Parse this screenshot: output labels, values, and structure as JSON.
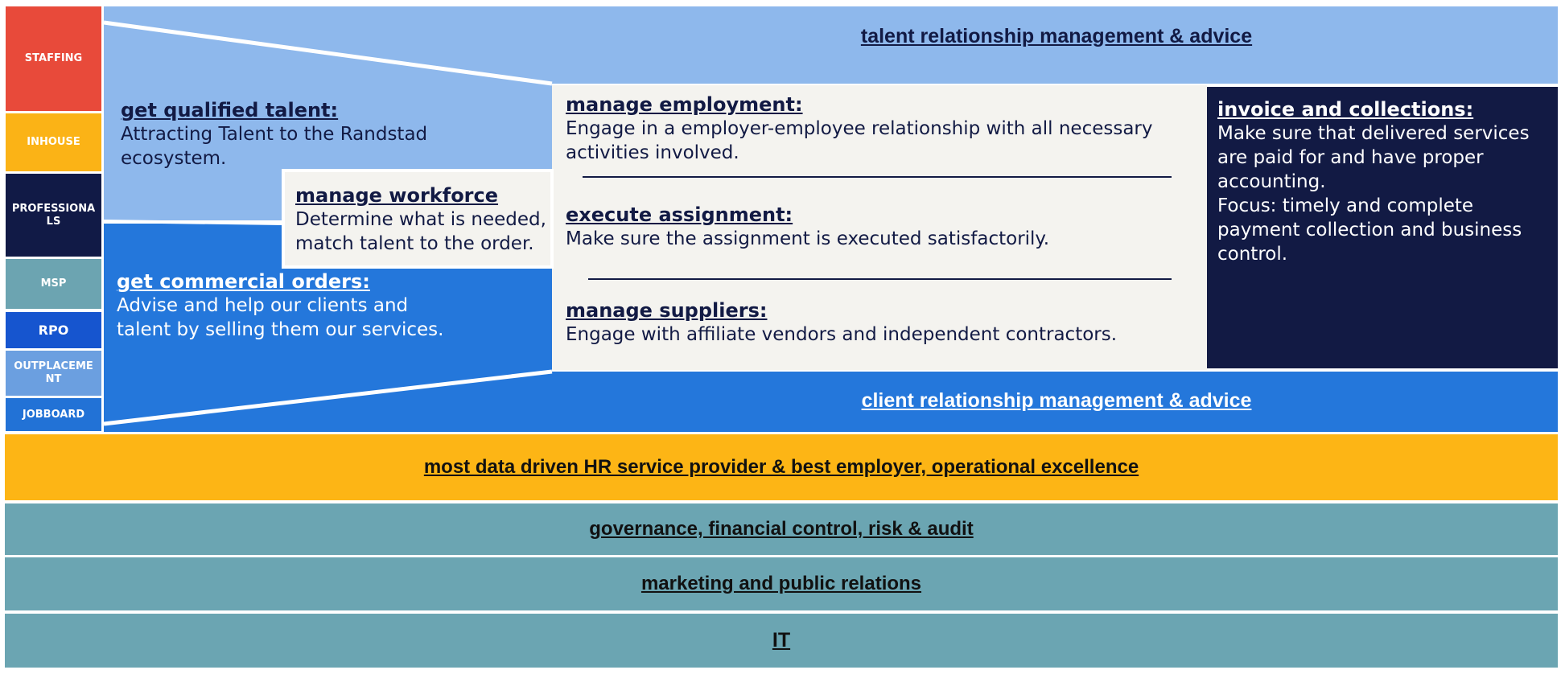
{
  "colors": {
    "staffing": "#e84a3a",
    "inhouse": "#fbb316",
    "professionals": "#111a46",
    "msp": "#6ca4b1",
    "rpo": "#1655cf",
    "outplacement": "#6b9fe0",
    "jobboard": "#2272d6",
    "light_blue": "#8eb8ec",
    "mid_blue": "#2477db",
    "cream": "#f4f3ef",
    "navy": "#121a44",
    "yellow": "#fdb515",
    "teal": "#6ba5b2"
  },
  "sidebar": {
    "items": [
      {
        "label": "STAFFING"
      },
      {
        "label": "INHOUSE"
      },
      {
        "label": "PROFESSIONALS"
      },
      {
        "label": "MSP"
      },
      {
        "label": "RPO"
      },
      {
        "label": "OUTPLACEMENT"
      },
      {
        "label": "JOBBOARD"
      }
    ]
  },
  "top_band": {
    "label": "talent relationship management & advice"
  },
  "client_band": {
    "label": "client relationship management & advice"
  },
  "qualified_talent": {
    "heading": "get qualified talent:",
    "text": "Attracting Talent to the Randstad ecosystem."
  },
  "workforce": {
    "heading": "manage workforce",
    "text": "Determine what is needed, match talent to the order."
  },
  "commercial_orders": {
    "heading": "get commercial orders:",
    "text": "Advise and help our clients and talent by selling them our services."
  },
  "employment": {
    "heading": "manage employment:",
    "text": "Engage in a employer-employee relationship with all necessary activities involved."
  },
  "assignment": {
    "heading": "execute assignment:",
    "text": "Make sure the assignment is executed satisfactorily."
  },
  "suppliers": {
    "heading": "manage suppliers:",
    "text": "Engage with affiliate vendors and independent contractors."
  },
  "invoice": {
    "heading": "invoice and collections:",
    "text": "Make sure that delivered services are paid for and have proper accounting.",
    "focus": "Focus: timely and complete payment collection and business control."
  },
  "bottom_bands": [
    {
      "label": "most data driven HR service provider & best employer, operational excellence"
    },
    {
      "label": "governance, financial control, risk & audit"
    },
    {
      "label": "marketing and public relations"
    },
    {
      "label": "IT"
    }
  ]
}
